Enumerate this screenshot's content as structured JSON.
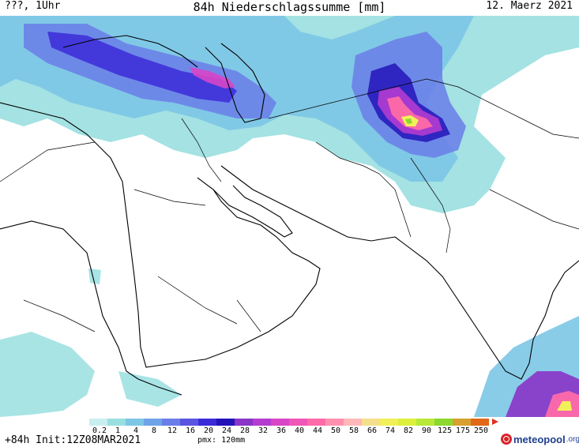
{
  "header": {
    "valid_time": "???, 1Uhr",
    "title": "84h Niederschlagssumme [mm]",
    "date": "12. Maerz 2021"
  },
  "legend": {
    "labels": [
      "0.2",
      "1",
      "4",
      "8",
      "12",
      "16",
      "20",
      "24",
      "28",
      "32",
      "36",
      "40",
      "44",
      "50",
      "58",
      "66",
      "74",
      "82",
      "90",
      "125",
      "175",
      "250"
    ],
    "colors": [
      "#c9eef0",
      "#9adfe0",
      "#7cc6e6",
      "#6fa3e8",
      "#6a7ee8",
      "#5a55e0",
      "#3c2cd8",
      "#2414b8",
      "#8a34c8",
      "#b43cd0",
      "#d846c8",
      "#f056b8",
      "#ff6aa8",
      "#ff90b0",
      "#ffb8b8",
      "#f4e08c",
      "#f2f05a",
      "#dcf03c",
      "#b8e838",
      "#8cd830",
      "#d8a030",
      "#e06818"
    ],
    "overflow_color": "#e03020"
  },
  "footer": {
    "init": "+84h Init:12Z08MAR2021",
    "pmx": "pmx: 120mm"
  },
  "brand": {
    "name": "meteopool",
    "tld": ".org"
  }
}
